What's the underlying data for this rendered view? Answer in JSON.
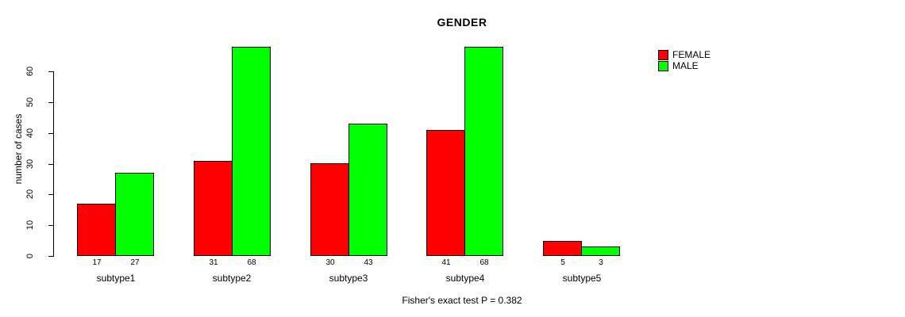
{
  "chart_data": {
    "type": "bar",
    "title": "GENDER",
    "ylabel": "number of cases",
    "xlabel": "",
    "categories": [
      "subtype1",
      "subtype2",
      "subtype3",
      "subtype4",
      "subtype5"
    ],
    "series": [
      {
        "name": "FEMALE",
        "color": "#ff0000",
        "values": [
          17,
          31,
          30,
          41,
          5
        ]
      },
      {
        "name": "MALE",
        "color": "#00ff00",
        "values": [
          27,
          68,
          43,
          68,
          3
        ]
      }
    ],
    "y_ticks": [
      0,
      10,
      20,
      30,
      40,
      50,
      60
    ],
    "ylim": [
      0,
      68
    ],
    "grid": false,
    "legend_position": "top-right",
    "value_labels": true,
    "footer": "Fisher's exact test P = 0.382"
  }
}
